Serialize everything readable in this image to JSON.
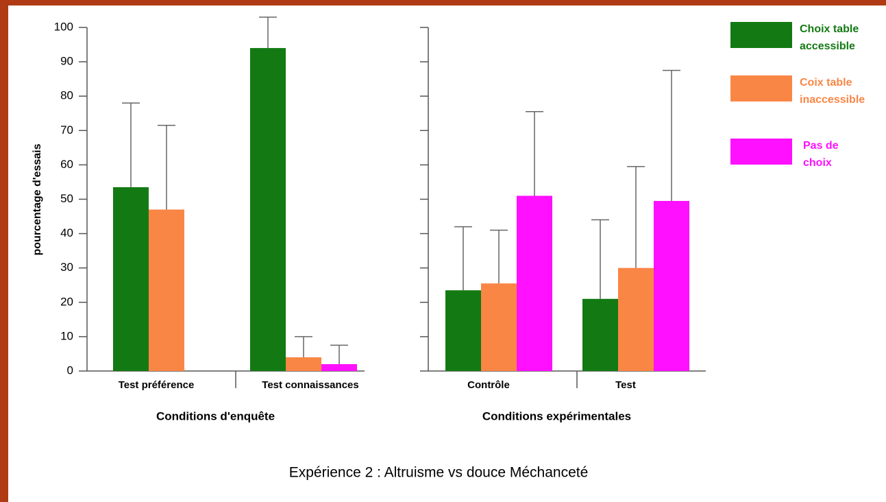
{
  "chart_data": {
    "type": "bar",
    "title": "Expérience 2 : Altruisme vs douce Méchanceté",
    "ylabel": "pourcentage d'essais",
    "ylim": [
      0,
      110
    ],
    "yticks": [
      0,
      10,
      20,
      30,
      40,
      50,
      60,
      70,
      80,
      90,
      100
    ],
    "panels": [
      {
        "xlabel": "Conditions d'enquête",
        "categories": [
          "Test préférence",
          "Test connaissances"
        ]
      },
      {
        "xlabel": "Conditions expérimentales",
        "categories": [
          "Contrôle",
          "Test"
        ]
      }
    ],
    "series": [
      {
        "name": "Choix table accessible",
        "color": "#137a13",
        "values": [
          53.5,
          94,
          23.5,
          21
        ],
        "errors": [
          24.5,
          9,
          18.5,
          23
        ]
      },
      {
        "name": "Coix table inaccessible",
        "color": "#fa8646",
        "values": [
          47,
          4,
          25.5,
          30
        ],
        "errors": [
          24.5,
          6,
          15.5,
          29.5
        ]
      },
      {
        "name": "Pas de choix",
        "color": "#ff10ff",
        "values": [
          null,
          2,
          51,
          49.5
        ],
        "errors": [
          null,
          5.5,
          24.5,
          38
        ]
      }
    ]
  }
}
